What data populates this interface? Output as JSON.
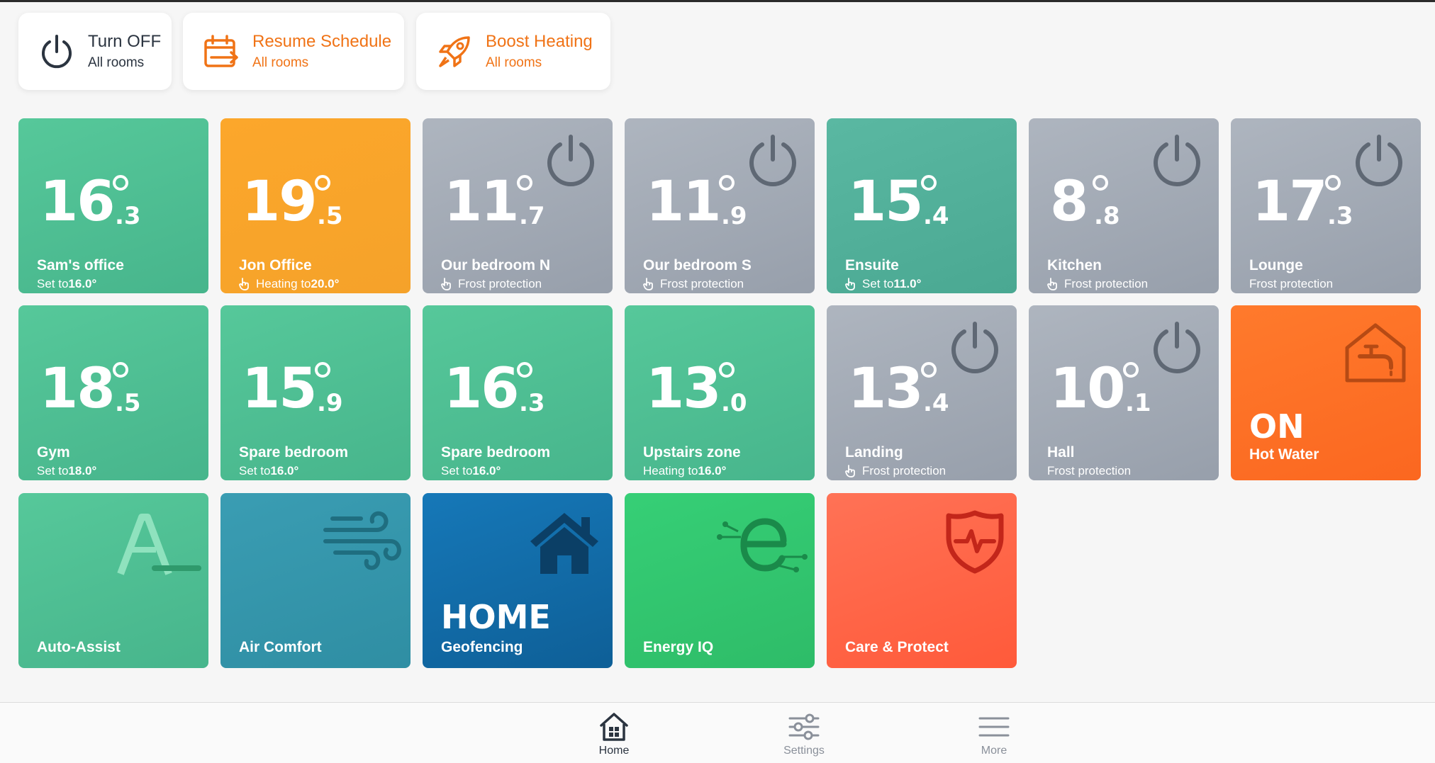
{
  "actions": [
    {
      "title": "Turn OFF",
      "subtitle": "All rooms"
    },
    {
      "title": "Resume Schedule",
      "subtitle": "All rooms"
    },
    {
      "title": "Boost Heating",
      "subtitle": "All rooms"
    }
  ],
  "rooms": [
    {
      "int": "16",
      "dec": ".3",
      "name": "Sam's office",
      "status_prefix": "Set to ",
      "status_value": "16.0°"
    },
    {
      "int": "19",
      "dec": ".5",
      "name": "Jon Office",
      "status_prefix": "Heating to ",
      "status_value": "20.0°"
    },
    {
      "int": "11",
      "dec": ".7",
      "name": "Our bedroom N",
      "status": "Frost protection"
    },
    {
      "int": "11",
      "dec": ".9",
      "name": "Our bedroom S",
      "status": "Frost protection"
    },
    {
      "int": "15",
      "dec": ".4",
      "name": "Ensuite",
      "status_prefix": "Set to ",
      "status_value": "11.0°"
    },
    {
      "int": "8",
      "dec": ".8",
      "name": "Kitchen",
      "status": "Frost protection"
    },
    {
      "int": "17",
      "dec": ".3",
      "name": "Lounge",
      "status": "Frost protection"
    },
    {
      "int": "18",
      "dec": ".5",
      "name": "Gym",
      "status_prefix": "Set to ",
      "status_value": "18.0°"
    },
    {
      "int": "15",
      "dec": ".9",
      "name": "Spare bedroom",
      "status_prefix": "Set to ",
      "status_value": "16.0°"
    },
    {
      "int": "16",
      "dec": ".3",
      "name": "Spare bedroom",
      "status_prefix": "Set to ",
      "status_value": "16.0°"
    },
    {
      "int": "13",
      "dec": ".0",
      "name": "Upstairs zone",
      "status_prefix": "Heating to ",
      "status_value": "16.0°"
    },
    {
      "int": "13",
      "dec": ".4",
      "name": "Landing",
      "status": "Frost protection"
    },
    {
      "int": "10",
      "dec": ".1",
      "name": "Hall",
      "status": "Frost protection"
    }
  ],
  "hot_water": {
    "state": "ON",
    "label": "Hot Water"
  },
  "features": {
    "auto_assist": "Auto-Assist",
    "air_comfort": "Air Comfort",
    "geofencing_state": "HOME",
    "geofencing": "Geofencing",
    "energy_iq": "Energy IQ",
    "care_protect": "Care & Protect"
  },
  "nav": [
    {
      "label": "Home",
      "icon": "home-icon"
    },
    {
      "label": "Settings",
      "icon": "sliders-icon"
    },
    {
      "label": "More",
      "icon": "menu-icon"
    }
  ],
  "colors": {
    "accent_orange": "#f07316",
    "room_green": "#4fbf93",
    "room_heating_orange": "#fca72b",
    "room_off_grey": "#a3aab5",
    "hot_water_orange": "#fd6f26",
    "air_comfort_teal": "#3497ad",
    "geofencing_blue": "#126ca8",
    "energy_green": "#32c670",
    "care_red": "#ff6449"
  }
}
